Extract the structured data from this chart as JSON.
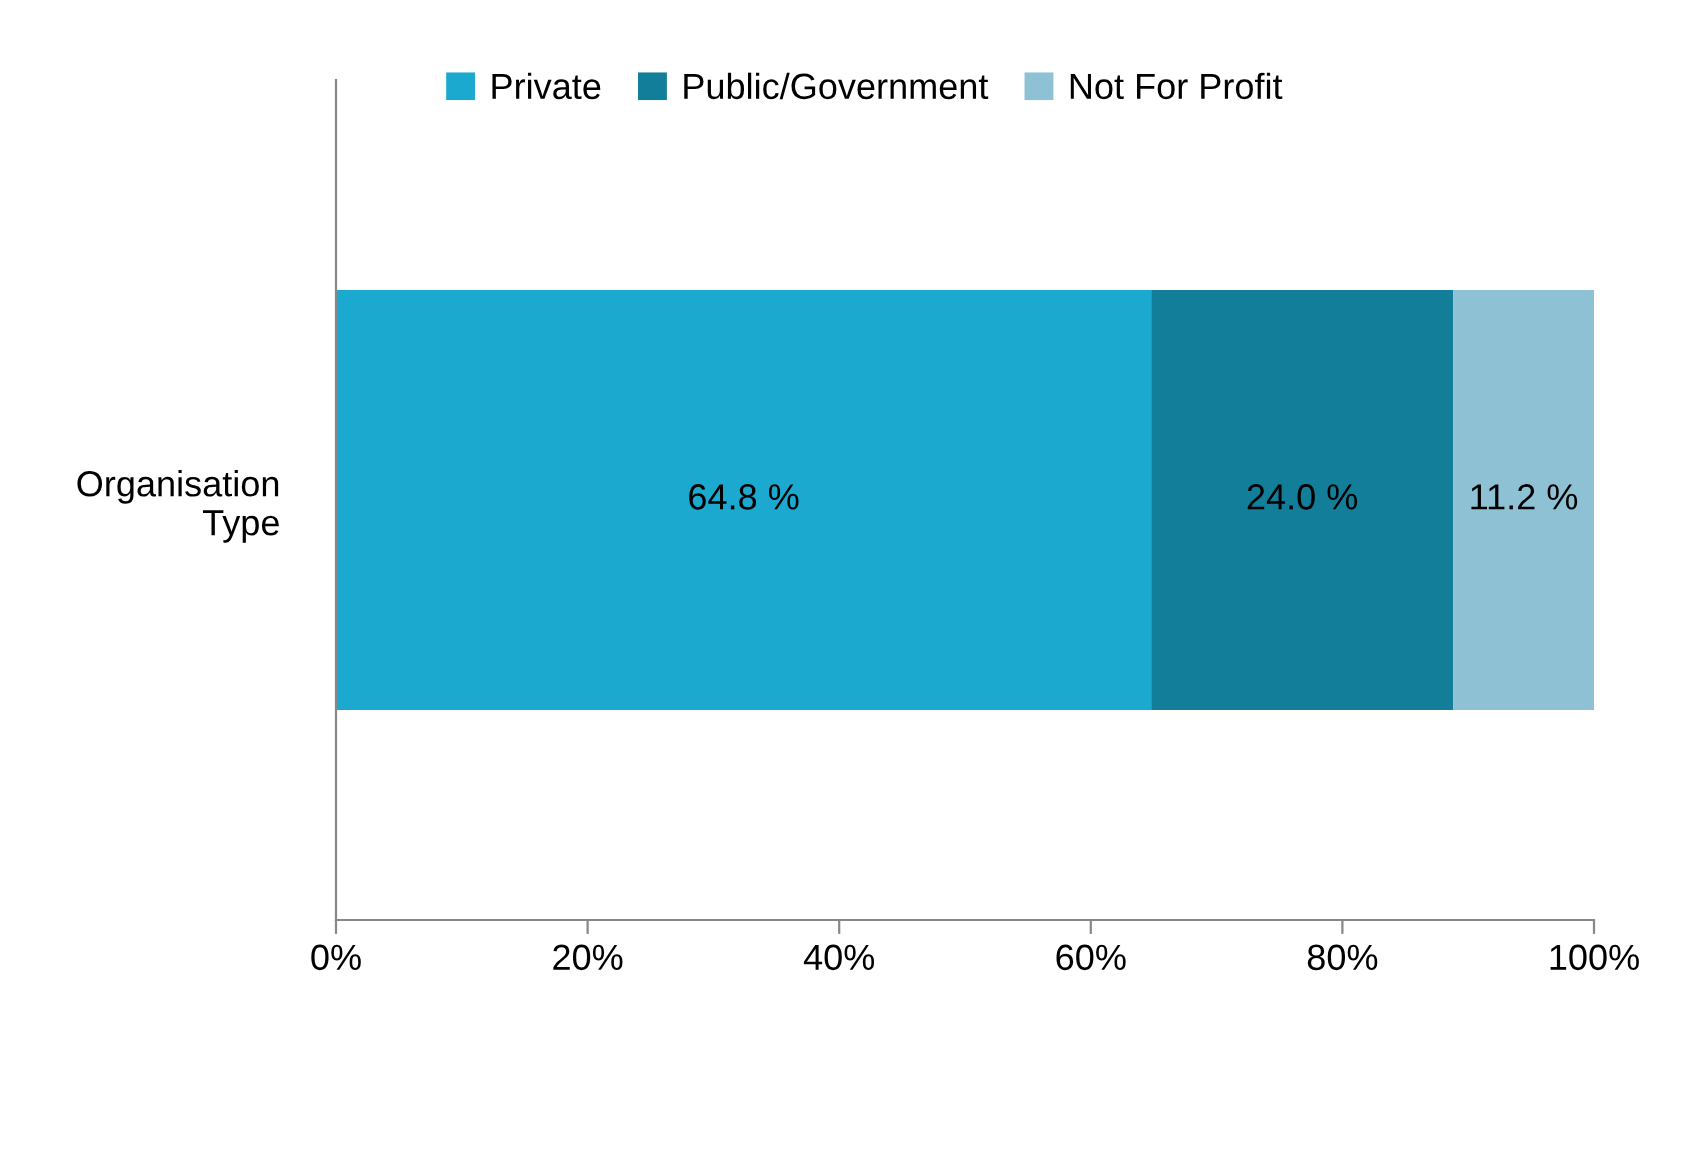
{
  "chart_data": {
    "type": "bar",
    "orientation": "horizontal",
    "stacked": true,
    "categories": [
      "Organisation\nType"
    ],
    "series": [
      {
        "name": "Private",
        "color": "#1ba9cf",
        "values": [
          64.8
        ],
        "value_labels": [
          "64.8 %"
        ]
      },
      {
        "name": "Public/Government",
        "color": "#127e99",
        "values": [
          24.0
        ],
        "value_labels": [
          "24.0 %"
        ]
      },
      {
        "name": "Not For Profit",
        "color": "#8fc1d4",
        "values": [
          11.2
        ],
        "value_labels": [
          "11.2 %"
        ]
      }
    ],
    "xlim": [
      0,
      100
    ],
    "xticks": [
      {
        "value": 0,
        "label": "0%"
      },
      {
        "value": 20,
        "label": "20%"
      },
      {
        "value": 40,
        "label": "40%"
      },
      {
        "value": 60,
        "label": "60%"
      },
      {
        "value": 80,
        "label": "80%"
      },
      {
        "value": 100,
        "label": "100%"
      }
    ],
    "legend": "top",
    "grid": false
  }
}
